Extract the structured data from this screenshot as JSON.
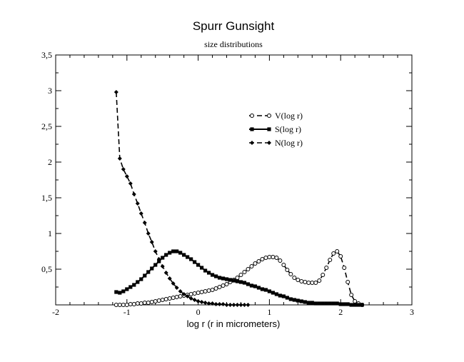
{
  "chart_data": {
    "type": "line",
    "title": "Spurr Gunsight",
    "subtitle": "size distributions",
    "xlabel": "log r (r in micrometers)",
    "ylabel": "",
    "xlim": [
      -2,
      3
    ],
    "ylim": [
      0,
      3.5
    ],
    "xticks": [
      {
        "value": -2,
        "label": "-2"
      },
      {
        "value": -1,
        "label": "-1"
      },
      {
        "value": 0,
        "label": "0"
      },
      {
        "value": 1,
        "label": "1"
      },
      {
        "value": 2,
        "label": "2"
      },
      {
        "value": 3,
        "label": "3"
      }
    ],
    "yticks": [
      {
        "value": 0.5,
        "label": "0,5"
      },
      {
        "value": 1,
        "label": "1"
      },
      {
        "value": 1.5,
        "label": "1,5"
      },
      {
        "value": 2,
        "label": "2"
      },
      {
        "value": 2.5,
        "label": "2,5"
      },
      {
        "value": 3,
        "label": "3"
      },
      {
        "value": 3.5,
        "label": "3,5"
      }
    ],
    "grid": false,
    "legend_position": "upper-right-inside",
    "series": [
      {
        "name": "V(log r)",
        "line_style": "dashed",
        "marker": "open-circle",
        "color": "#000000",
        "points": [
          [
            -1.15,
            0.0
          ],
          [
            -1.1,
            0.0
          ],
          [
            -1.05,
            0.0
          ],
          [
            -1.0,
            0.0
          ],
          [
            -0.95,
            0.01
          ],
          [
            -0.9,
            0.01
          ],
          [
            -0.85,
            0.02
          ],
          [
            -0.8,
            0.02
          ],
          [
            -0.75,
            0.03
          ],
          [
            -0.7,
            0.03
          ],
          [
            -0.65,
            0.04
          ],
          [
            -0.6,
            0.05
          ],
          [
            -0.55,
            0.06
          ],
          [
            -0.5,
            0.07
          ],
          [
            -0.45,
            0.08
          ],
          [
            -0.4,
            0.09
          ],
          [
            -0.35,
            0.1
          ],
          [
            -0.3,
            0.11
          ],
          [
            -0.25,
            0.12
          ],
          [
            -0.2,
            0.13
          ],
          [
            -0.15,
            0.14
          ],
          [
            -0.1,
            0.15
          ],
          [
            -0.05,
            0.16
          ],
          [
            0.0,
            0.17
          ],
          [
            0.05,
            0.18
          ],
          [
            0.1,
            0.19
          ],
          [
            0.15,
            0.2
          ],
          [
            0.2,
            0.21
          ],
          [
            0.25,
            0.23
          ],
          [
            0.3,
            0.25
          ],
          [
            0.35,
            0.27
          ],
          [
            0.4,
            0.29
          ],
          [
            0.45,
            0.32
          ],
          [
            0.5,
            0.35
          ],
          [
            0.55,
            0.38
          ],
          [
            0.6,
            0.42
          ],
          [
            0.65,
            0.46
          ],
          [
            0.7,
            0.5
          ],
          [
            0.75,
            0.54
          ],
          [
            0.8,
            0.58
          ],
          [
            0.85,
            0.61
          ],
          [
            0.9,
            0.64
          ],
          [
            0.95,
            0.66
          ],
          [
            1.0,
            0.67
          ],
          [
            1.05,
            0.67
          ],
          [
            1.1,
            0.66
          ],
          [
            1.15,
            0.62
          ],
          [
            1.2,
            0.56
          ],
          [
            1.25,
            0.49
          ],
          [
            1.3,
            0.43
          ],
          [
            1.35,
            0.38
          ],
          [
            1.4,
            0.35
          ],
          [
            1.45,
            0.33
          ],
          [
            1.5,
            0.32
          ],
          [
            1.55,
            0.31
          ],
          [
            1.6,
            0.31
          ],
          [
            1.65,
            0.31
          ],
          [
            1.7,
            0.34
          ],
          [
            1.75,
            0.42
          ],
          [
            1.8,
            0.52
          ],
          [
            1.85,
            0.63
          ],
          [
            1.9,
            0.72
          ],
          [
            1.95,
            0.75
          ],
          [
            2.0,
            0.68
          ],
          [
            2.05,
            0.52
          ],
          [
            2.1,
            0.32
          ],
          [
            2.15,
            0.14
          ],
          [
            2.2,
            0.05
          ],
          [
            2.25,
            0.02
          ],
          [
            2.3,
            0.0
          ]
        ]
      },
      {
        "name": "S(log r)",
        "line_style": "solid",
        "marker": "filled-square",
        "color": "#000000",
        "points": [
          [
            -1.15,
            0.18
          ],
          [
            -1.1,
            0.17
          ],
          [
            -1.05,
            0.19
          ],
          [
            -1.0,
            0.22
          ],
          [
            -0.95,
            0.25
          ],
          [
            -0.9,
            0.28
          ],
          [
            -0.85,
            0.32
          ],
          [
            -0.8,
            0.36
          ],
          [
            -0.75,
            0.41
          ],
          [
            -0.7,
            0.46
          ],
          [
            -0.65,
            0.51
          ],
          [
            -0.6,
            0.56
          ],
          [
            -0.55,
            0.61
          ],
          [
            -0.5,
            0.66
          ],
          [
            -0.45,
            0.7
          ],
          [
            -0.4,
            0.73
          ],
          [
            -0.35,
            0.75
          ],
          [
            -0.3,
            0.75
          ],
          [
            -0.25,
            0.73
          ],
          [
            -0.2,
            0.7
          ],
          [
            -0.15,
            0.67
          ],
          [
            -0.1,
            0.64
          ],
          [
            -0.05,
            0.6
          ],
          [
            0.0,
            0.56
          ],
          [
            0.05,
            0.52
          ],
          [
            0.1,
            0.48
          ],
          [
            0.15,
            0.45
          ],
          [
            0.2,
            0.42
          ],
          [
            0.25,
            0.4
          ],
          [
            0.3,
            0.38
          ],
          [
            0.35,
            0.37
          ],
          [
            0.4,
            0.36
          ],
          [
            0.45,
            0.35
          ],
          [
            0.5,
            0.34
          ],
          [
            0.55,
            0.33
          ],
          [
            0.6,
            0.32
          ],
          [
            0.65,
            0.31
          ],
          [
            0.7,
            0.29
          ],
          [
            0.75,
            0.27
          ],
          [
            0.8,
            0.26
          ],
          [
            0.85,
            0.24
          ],
          [
            0.9,
            0.22
          ],
          [
            0.95,
            0.21
          ],
          [
            1.0,
            0.19
          ],
          [
            1.05,
            0.17
          ],
          [
            1.1,
            0.15
          ],
          [
            1.15,
            0.13
          ],
          [
            1.2,
            0.12
          ],
          [
            1.25,
            0.1
          ],
          [
            1.3,
            0.08
          ],
          [
            1.35,
            0.07
          ],
          [
            1.4,
            0.06
          ],
          [
            1.45,
            0.05
          ],
          [
            1.5,
            0.04
          ],
          [
            1.55,
            0.03
          ],
          [
            1.6,
            0.03
          ],
          [
            1.65,
            0.02
          ],
          [
            1.7,
            0.02
          ],
          [
            1.75,
            0.02
          ],
          [
            1.8,
            0.02
          ],
          [
            1.85,
            0.02
          ],
          [
            1.9,
            0.02
          ],
          [
            1.95,
            0.02
          ],
          [
            2.0,
            0.01
          ],
          [
            2.05,
            0.01
          ],
          [
            2.1,
            0.01
          ],
          [
            2.15,
            0.0
          ],
          [
            2.2,
            0.0
          ],
          [
            2.25,
            0.0
          ],
          [
            2.3,
            0.0
          ]
        ]
      },
      {
        "name": "N(log r)",
        "line_style": "dashed",
        "marker": "filled-diamond",
        "color": "#000000",
        "points": [
          [
            -1.15,
            2.98
          ],
          [
            -1.1,
            2.05
          ],
          [
            -1.05,
            1.9
          ],
          [
            -1.0,
            1.8
          ],
          [
            -0.95,
            1.7
          ],
          [
            -0.9,
            1.55
          ],
          [
            -0.85,
            1.42
          ],
          [
            -0.8,
            1.28
          ],
          [
            -0.75,
            1.15
          ],
          [
            -0.7,
            1.0
          ],
          [
            -0.65,
            0.88
          ],
          [
            -0.6,
            0.75
          ],
          [
            -0.55,
            0.64
          ],
          [
            -0.5,
            0.54
          ],
          [
            -0.45,
            0.45
          ],
          [
            -0.4,
            0.37
          ],
          [
            -0.35,
            0.3
          ],
          [
            -0.3,
            0.24
          ],
          [
            -0.25,
            0.19
          ],
          [
            -0.2,
            0.15
          ],
          [
            -0.15,
            0.12
          ],
          [
            -0.1,
            0.09
          ],
          [
            -0.05,
            0.07
          ],
          [
            0.0,
            0.05
          ],
          [
            0.05,
            0.04
          ],
          [
            0.1,
            0.03
          ],
          [
            0.15,
            0.02
          ],
          [
            0.2,
            0.02
          ],
          [
            0.25,
            0.01
          ],
          [
            0.3,
            0.01
          ],
          [
            0.35,
            0.01
          ],
          [
            0.4,
            0.0
          ],
          [
            0.45,
            0.0
          ],
          [
            0.5,
            0.0
          ],
          [
            0.55,
            0.0
          ],
          [
            0.6,
            0.0
          ],
          [
            0.65,
            0.0
          ],
          [
            0.7,
            0.0
          ]
        ]
      }
    ]
  }
}
